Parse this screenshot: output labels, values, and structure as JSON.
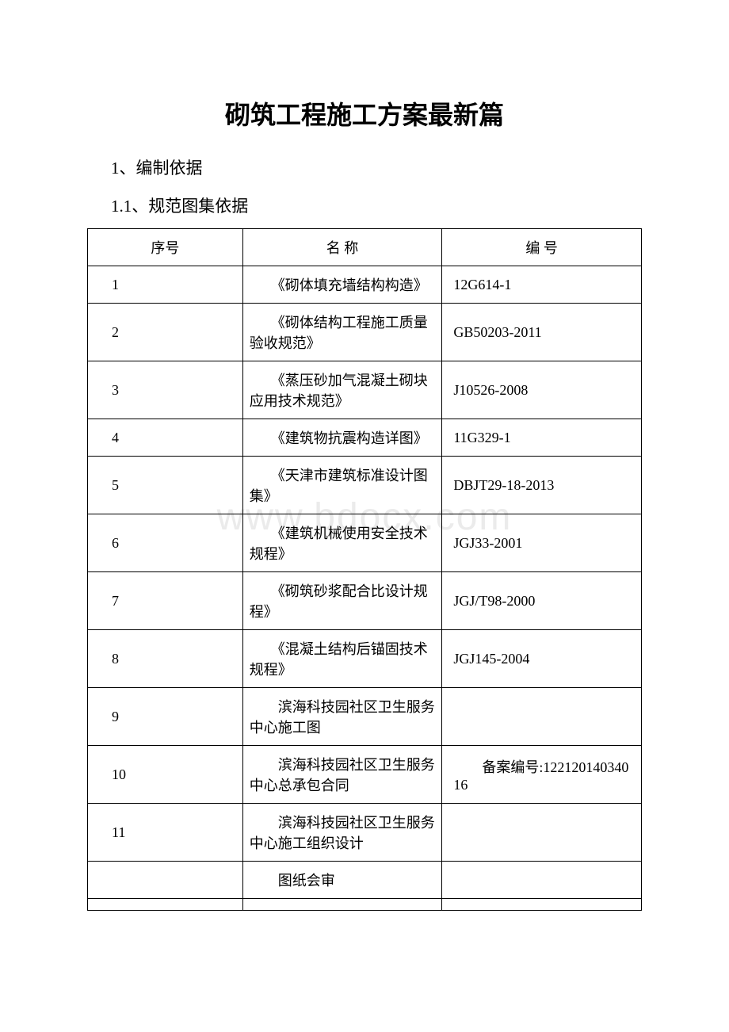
{
  "watermark": "www.bdocx.com",
  "title": "砌筑工程施工方案最新篇",
  "section1": "1、编制依据",
  "section1_1": "1.1、规范图集依据",
  "table": {
    "headers": {
      "seq": "序号",
      "name": "名 称",
      "code": "编 号"
    },
    "rows": [
      {
        "seq": "1",
        "name": "　　《砌体填充墙结构构造》",
        "code": "12G614-1"
      },
      {
        "seq": "2",
        "name": "　　《砌体结构工程施工质量验收规范》",
        "code": "GB50203-2011"
      },
      {
        "seq": "3",
        "name": "　　《蒸压砂加气混凝土砌块应用技术规范》",
        "code": "J10526-2008"
      },
      {
        "seq": "4",
        "name": "　　《建筑物抗震构造详图》",
        "code": "11G329-1"
      },
      {
        "seq": "5",
        "name": "　　《天津市建筑标准设计图集》",
        "code": "DBJT29-18-2013"
      },
      {
        "seq": "6",
        "name": "　　《建筑机械使用安全技术规程》",
        "code": "JGJ33-2001"
      },
      {
        "seq": "7",
        "name": "　　《砌筑砂浆配合比设计规程》",
        "code": "JGJ/T98-2000"
      },
      {
        "seq": "8",
        "name": "　　《混凝土结构后锚固技术规程》",
        "code": "JGJ145-2004"
      },
      {
        "seq": "9",
        "name": "　　滨海科技园社区卫生服务中心施工图",
        "code": ""
      },
      {
        "seq": "10",
        "name": "　　滨海科技园社区卫生服务中心总承包合同",
        "code": "　　备案编号:12212014034016"
      },
      {
        "seq": "11",
        "name": "　　滨海科技园社区卫生服务中心施工组织设计",
        "code": ""
      },
      {
        "seq": "",
        "name": "　　图纸会审",
        "code": ""
      }
    ]
  },
  "style": {
    "background_color": "#ffffff",
    "text_color": "#000000",
    "border_color": "#000000",
    "watermark_color": "#ebebeb",
    "title_fontsize": 32,
    "heading_fontsize": 21,
    "cell_fontsize": 18,
    "font_family": "SimSun"
  }
}
